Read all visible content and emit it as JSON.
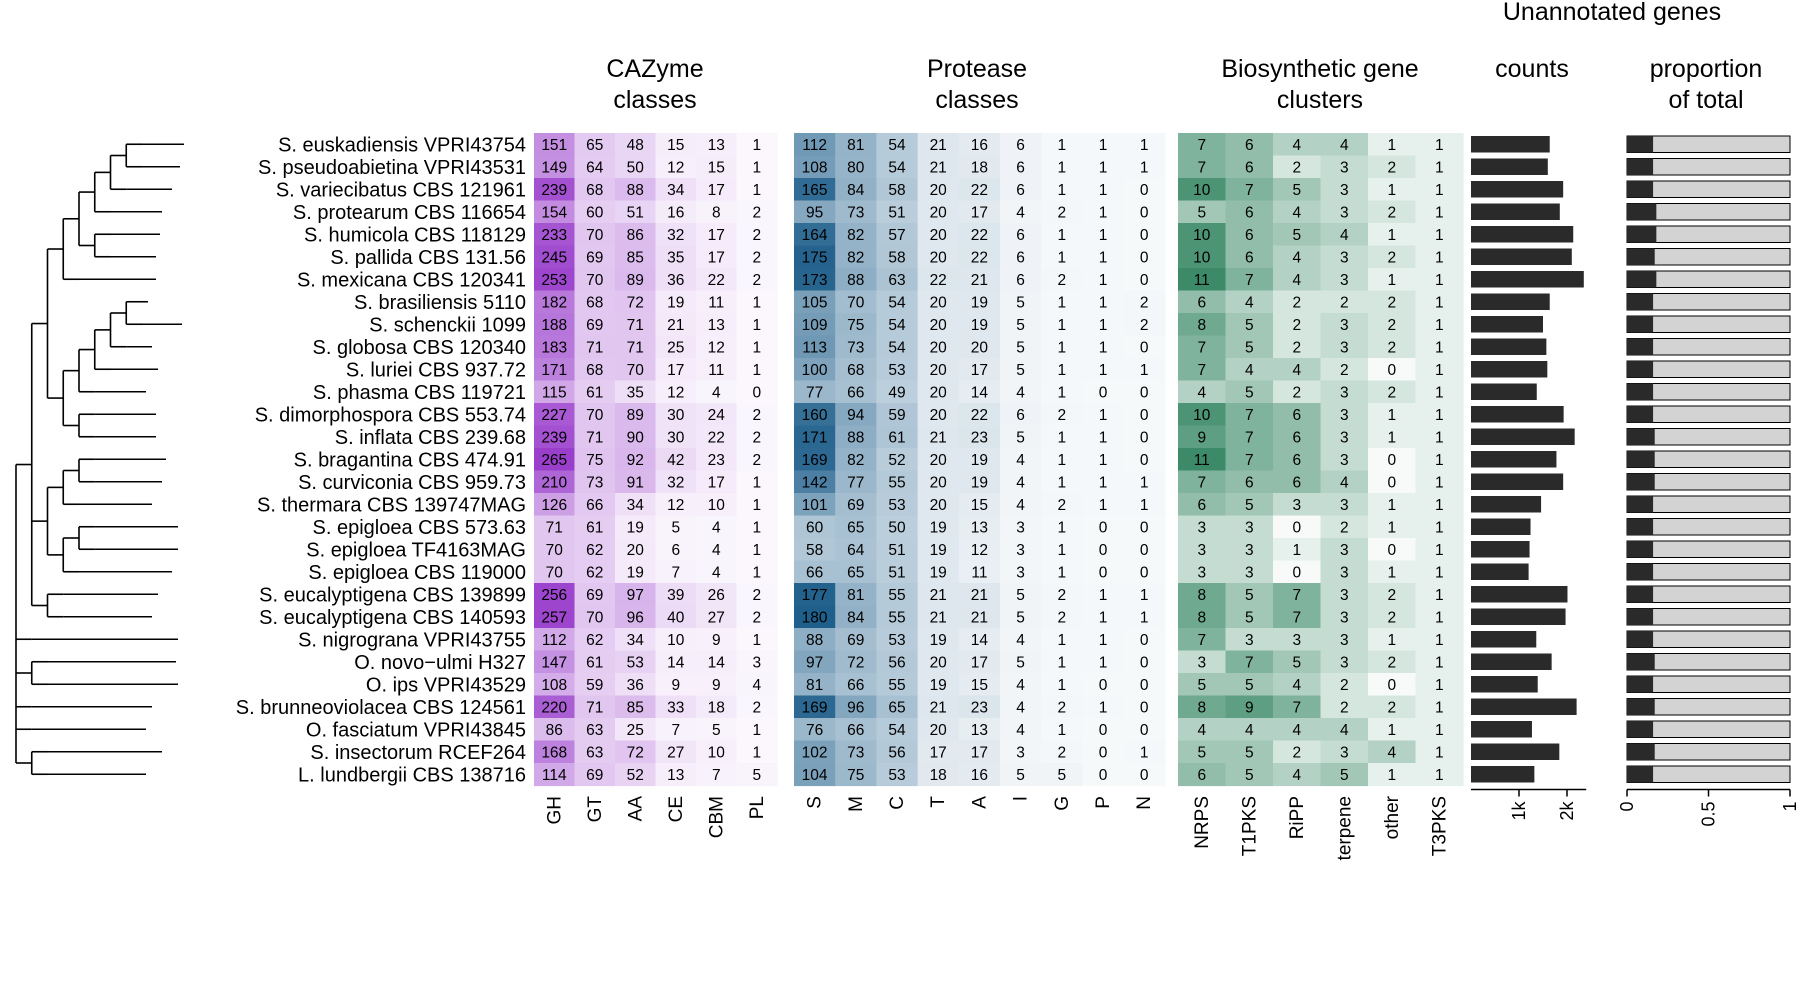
{
  "title": "Unannotated genes",
  "headers": {
    "cazyme": [
      "CAZyme",
      "classes"
    ],
    "protease": [
      "Protease",
      "classes"
    ],
    "bgc": [
      "Biosynthetic gene",
      "clusters"
    ],
    "counts": [
      "counts"
    ],
    "proportion": [
      "proportion",
      "of total"
    ]
  },
  "colors": {
    "cazyme": "#9a3fcc",
    "protease": "#1f5f8b",
    "bgc": "#3c8a68",
    "count_bar": "#2a2a2a",
    "proportion_fill": "#d3d3d3"
  },
  "strains": [
    "S. euskadiensis VPRI43754",
    "S. pseudoabietina VPRI43531",
    "S. variecibatus CBS 121961",
    "S. protearum CBS 116654",
    "S. humicola CBS 118129",
    "S. pallida CBS 131.56",
    "S. mexicana CBS 120341",
    "S. brasiliensis 5110",
    "S. schenckii 1099",
    "S. globosa CBS 120340",
    "S. luriei CBS 937.72",
    "S. phasma CBS 119721",
    "S. dimorphospora CBS 553.74",
    "S. inflata CBS 239.68",
    "S. bragantina CBS 474.91",
    "S. curviconia CBS 959.73",
    "S. thermara CBS 139747MAG",
    "S. epigloea CBS 573.63",
    "S. epigloea TF4163MAG",
    "S. epigloea CBS 119000",
    "S. eucalyptigena CBS 139899",
    "S. eucalyptigena CBS 140593",
    "S. nigrograna VPRI43755",
    "O. novo−ulmi H327",
    "O. ips VPRI43529",
    "S. brunneoviolacea CBS 124561",
    "O. fasciatum VPRI43845",
    "S. insectorum RCEF264",
    "L. lundbergii CBS 138716"
  ],
  "chart_data": [
    {
      "type": "heatmap",
      "title": "CAZyme classes",
      "columns": [
        "GH",
        "GT",
        "AA",
        "CE",
        "CBM",
        "PL"
      ],
      "values": [
        [
          151,
          65,
          48,
          15,
          13,
          1
        ],
        [
          149,
          64,
          50,
          12,
          15,
          1
        ],
        [
          239,
          68,
          88,
          34,
          17,
          1
        ],
        [
          154,
          60,
          51,
          16,
          8,
          2
        ],
        [
          233,
          70,
          86,
          32,
          17,
          2
        ],
        [
          245,
          69,
          85,
          35,
          17,
          2
        ],
        [
          253,
          70,
          89,
          36,
          22,
          2
        ],
        [
          182,
          68,
          72,
          19,
          11,
          1
        ],
        [
          188,
          69,
          71,
          21,
          13,
          1
        ],
        [
          183,
          71,
          71,
          25,
          12,
          1
        ],
        [
          171,
          68,
          70,
          17,
          11,
          1
        ],
        [
          115,
          61,
          35,
          12,
          4,
          0
        ],
        [
          227,
          70,
          89,
          30,
          24,
          2
        ],
        [
          239,
          71,
          90,
          30,
          22,
          2
        ],
        [
          265,
          75,
          92,
          42,
          23,
          2
        ],
        [
          210,
          73,
          91,
          32,
          17,
          1
        ],
        [
          126,
          66,
          34,
          12,
          10,
          1
        ],
        [
          71,
          61,
          19,
          5,
          4,
          1
        ],
        [
          70,
          62,
          20,
          6,
          4,
          1
        ],
        [
          70,
          62,
          19,
          7,
          4,
          1
        ],
        [
          256,
          69,
          97,
          39,
          26,
          2
        ],
        [
          257,
          70,
          96,
          40,
          27,
          2
        ],
        [
          112,
          62,
          34,
          10,
          9,
          1
        ],
        [
          147,
          61,
          53,
          14,
          14,
          3
        ],
        [
          108,
          59,
          36,
          9,
          9,
          4
        ],
        [
          220,
          71,
          85,
          33,
          18,
          2
        ],
        [
          86,
          63,
          25,
          7,
          5,
          1
        ],
        [
          168,
          63,
          72,
          27,
          10,
          1
        ],
        [
          114,
          69,
          52,
          13,
          7,
          5
        ]
      ]
    },
    {
      "type": "heatmap",
      "title": "Protease classes",
      "columns": [
        "S",
        "M",
        "C",
        "T",
        "A",
        "I",
        "G",
        "P",
        "N"
      ],
      "values": [
        [
          112,
          81,
          54,
          21,
          16,
          6,
          1,
          1,
          1
        ],
        [
          108,
          80,
          54,
          21,
          18,
          6,
          1,
          1,
          1
        ],
        [
          165,
          84,
          58,
          20,
          22,
          6,
          1,
          1,
          0
        ],
        [
          95,
          73,
          51,
          20,
          17,
          4,
          2,
          1,
          0
        ],
        [
          164,
          82,
          57,
          20,
          22,
          6,
          1,
          1,
          0
        ],
        [
          175,
          82,
          58,
          20,
          22,
          6,
          1,
          1,
          0
        ],
        [
          173,
          88,
          63,
          22,
          21,
          6,
          2,
          1,
          0
        ],
        [
          105,
          70,
          54,
          20,
          19,
          5,
          1,
          1,
          2
        ],
        [
          109,
          75,
          54,
          20,
          19,
          5,
          1,
          1,
          2
        ],
        [
          113,
          73,
          54,
          20,
          20,
          5,
          1,
          1,
          0
        ],
        [
          100,
          68,
          53,
          20,
          17,
          5,
          1,
          1,
          1
        ],
        [
          77,
          66,
          49,
          20,
          14,
          4,
          1,
          0,
          0
        ],
        [
          160,
          94,
          59,
          20,
          22,
          6,
          2,
          1,
          0
        ],
        [
          171,
          88,
          61,
          21,
          23,
          5,
          1,
          1,
          0
        ],
        [
          169,
          82,
          52,
          20,
          19,
          4,
          1,
          1,
          0
        ],
        [
          142,
          77,
          55,
          20,
          19,
          4,
          1,
          1,
          1
        ],
        [
          101,
          69,
          53,
          20,
          15,
          4,
          2,
          1,
          1
        ],
        [
          60,
          65,
          50,
          19,
          13,
          3,
          1,
          0,
          0
        ],
        [
          58,
          64,
          51,
          19,
          12,
          3,
          1,
          0,
          0
        ],
        [
          66,
          65,
          51,
          19,
          11,
          3,
          1,
          0,
          0
        ],
        [
          177,
          81,
          55,
          21,
          21,
          5,
          2,
          1,
          1
        ],
        [
          180,
          84,
          55,
          21,
          21,
          5,
          2,
          1,
          1
        ],
        [
          88,
          69,
          53,
          19,
          14,
          4,
          1,
          1,
          0
        ],
        [
          97,
          72,
          56,
          20,
          17,
          5,
          1,
          1,
          0
        ],
        [
          81,
          66,
          55,
          19,
          15,
          4,
          1,
          0,
          0
        ],
        [
          169,
          96,
          65,
          21,
          23,
          4,
          2,
          1,
          0
        ],
        [
          76,
          66,
          54,
          20,
          13,
          4,
          1,
          0,
          0
        ],
        [
          102,
          73,
          56,
          17,
          17,
          3,
          2,
          0,
          1
        ],
        [
          104,
          75,
          53,
          18,
          16,
          5,
          5,
          0,
          0
        ]
      ]
    },
    {
      "type": "heatmap",
      "title": "Biosynthetic gene clusters",
      "columns": [
        "NRPS",
        "T1PKS",
        "RiPP",
        "terpene",
        "other",
        "T3PKS"
      ],
      "values": [
        [
          7,
          6,
          4,
          4,
          1,
          1
        ],
        [
          7,
          6,
          2,
          3,
          2,
          1
        ],
        [
          10,
          7,
          5,
          3,
          1,
          1
        ],
        [
          5,
          6,
          4,
          3,
          2,
          1
        ],
        [
          10,
          6,
          5,
          4,
          1,
          1
        ],
        [
          10,
          6,
          4,
          3,
          2,
          1
        ],
        [
          11,
          7,
          4,
          3,
          1,
          1
        ],
        [
          6,
          4,
          2,
          2,
          2,
          1
        ],
        [
          8,
          5,
          2,
          3,
          2,
          1
        ],
        [
          7,
          5,
          2,
          3,
          2,
          1
        ],
        [
          7,
          4,
          4,
          2,
          0,
          1
        ],
        [
          4,
          5,
          2,
          3,
          2,
          1
        ],
        [
          10,
          7,
          6,
          3,
          1,
          1
        ],
        [
          9,
          7,
          6,
          3,
          1,
          1
        ],
        [
          11,
          7,
          6,
          3,
          0,
          1
        ],
        [
          7,
          6,
          6,
          4,
          0,
          1
        ],
        [
          6,
          5,
          3,
          3,
          1,
          1
        ],
        [
          3,
          3,
          0,
          2,
          1,
          1
        ],
        [
          3,
          3,
          1,
          3,
          0,
          1
        ],
        [
          3,
          3,
          0,
          3,
          1,
          1
        ],
        [
          8,
          5,
          7,
          3,
          2,
          1
        ],
        [
          8,
          5,
          7,
          3,
          2,
          1
        ],
        [
          7,
          3,
          3,
          3,
          1,
          1
        ],
        [
          3,
          7,
          5,
          3,
          2,
          1
        ],
        [
          5,
          5,
          4,
          2,
          0,
          1
        ],
        [
          8,
          9,
          7,
          2,
          2,
          1
        ],
        [
          4,
          4,
          4,
          4,
          1,
          1
        ],
        [
          5,
          5,
          2,
          3,
          4,
          1
        ],
        [
          6,
          5,
          4,
          5,
          1,
          1
        ]
      ]
    },
    {
      "type": "bar",
      "title": "counts",
      "ticks": [
        "1k",
        "2k"
      ],
      "xlim": [
        0,
        2400
      ],
      "values": [
        1640,
        1600,
        1920,
        1850,
        2130,
        2100,
        2350,
        1640,
        1500,
        1570,
        1590,
        1370,
        1930,
        2160,
        1780,
        1920,
        1460,
        1240,
        1220,
        1200,
        2010,
        1970,
        1360,
        1680,
        1390,
        2200,
        1270,
        1840,
        1320
      ]
    },
    {
      "type": "bar",
      "title": "proportion of total",
      "ticks": [
        "0",
        "0.5",
        "1"
      ],
      "xlim": [
        0,
        1
      ],
      "values": [
        0.16,
        0.16,
        0.16,
        0.18,
        0.18,
        0.17,
        0.18,
        0.16,
        0.16,
        0.16,
        0.16,
        0.16,
        0.16,
        0.17,
        0.17,
        0.17,
        0.16,
        0.16,
        0.16,
        0.16,
        0.16,
        0.16,
        0.16,
        0.17,
        0.16,
        0.17,
        0.16,
        0.17,
        0.16
      ]
    }
  ]
}
